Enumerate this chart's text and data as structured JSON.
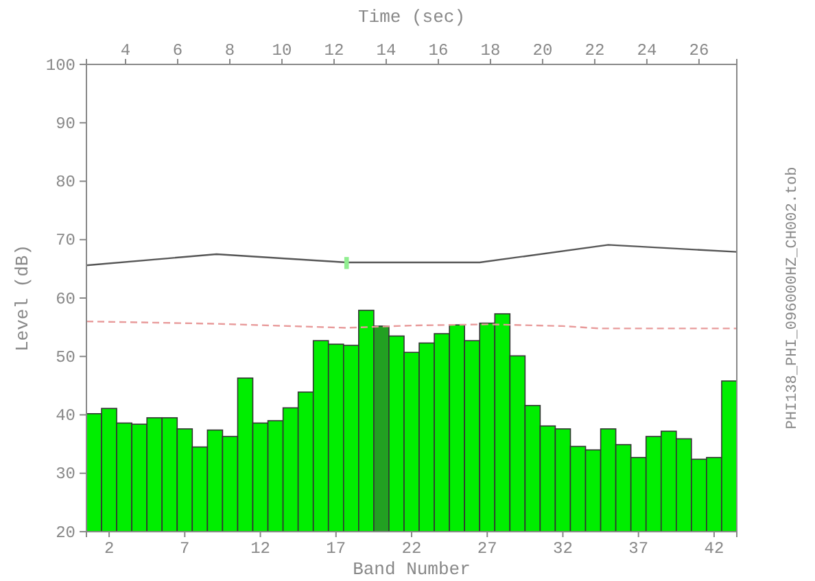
{
  "chart_data": {
    "type": "bar",
    "xlabel": "Band Number",
    "ylabel": "Level (dB)",
    "x2label": "Time (sec)",
    "x": [
      1,
      2,
      3,
      4,
      5,
      6,
      7,
      8,
      9,
      10,
      11,
      12,
      13,
      14,
      15,
      16,
      17,
      18,
      19,
      20,
      21,
      22,
      23,
      24,
      25,
      26,
      27,
      28,
      29,
      30,
      31,
      32,
      33,
      34,
      35,
      36,
      37,
      38,
      39,
      40,
      41,
      42,
      43
    ],
    "xlim": [
      0.5,
      43.5
    ],
    "xticks": [
      2,
      7,
      12,
      17,
      22,
      27,
      32,
      37,
      42
    ],
    "x2lim": [
      2.5,
      27.45
    ],
    "x2ticks": [
      4,
      6,
      8,
      10,
      12,
      14,
      16,
      18,
      20,
      22,
      24,
      26
    ],
    "ylim": [
      20,
      100
    ],
    "yticks": [
      20,
      30,
      40,
      50,
      60,
      70,
      80,
      90,
      100
    ],
    "series": [
      {
        "colors": [
          "#00ee00",
          "#00ee00",
          "#00ee00",
          "#00ee00",
          "#00ee00",
          "#00ee00",
          "#00ee00",
          "#00ee00",
          "#00ee00",
          "#00ee00",
          "#00ee00",
          "#00ee00",
          "#00ee00",
          "#00ee00",
          "#00ee00",
          "#00ee00",
          "#00ee00",
          "#00ee00",
          "#00ee00",
          "#22a022",
          "#00ee00",
          "#00ee00",
          "#00ee00",
          "#00ee00",
          "#00ee00",
          "#00ee00",
          "#00ee00",
          "#00ee00",
          "#00ee00",
          "#00ee00",
          "#00ee00",
          "#00ee00",
          "#00ee00",
          "#00ee00",
          "#00ee00",
          "#00ee00",
          "#00ee00",
          "#00ee00",
          "#00ee00",
          "#00ee00",
          "#00ee00",
          "#00ee00",
          "#00ee00"
        ],
        "values": [
          40.2,
          41.1,
          38.6,
          38.4,
          39.5,
          39.5,
          37.6,
          34.5,
          37.4,
          36.3,
          46.3,
          38.6,
          39.0,
          41.2,
          43.9,
          52.7,
          52.1,
          51.9,
          57.9,
          55.2,
          53.5,
          50.7,
          52.3,
          53.9,
          55.4,
          52.7,
          55.7,
          57.3,
          50.1,
          41.6,
          38.1,
          37.6,
          34.6,
          34.0,
          37.6,
          34.9,
          32.7,
          36.3,
          37.2,
          35.9,
          32.4,
          32.7,
          45.8
        ]
      },
      {
        "type": "line",
        "color": "#555555",
        "line_style": "solid",
        "x": [
          0.5,
          9.1,
          17.7,
          26.5,
          35.0,
          43.5
        ],
        "values": [
          65.6,
          67.5,
          66.1,
          66.1,
          69.1,
          67.9
        ]
      },
      {
        "type": "line",
        "color": "#e89a9a",
        "line_style": "dashed",
        "x": [
          0.5,
          9,
          17.7,
          22,
          27,
          32,
          34.4,
          43.5
        ],
        "values": [
          56.0,
          55.6,
          54.9,
          55.3,
          55.5,
          55.2,
          54.8,
          54.8
        ]
      },
      {
        "type": "scatter",
        "color": "#90ee90",
        "marker": "square",
        "x": [
          17.7
        ],
        "values": [
          66.0
        ]
      }
    ],
    "annotations": [
      "PHI138_PHI_096000HZ_CH002.tob"
    ],
    "grid": false
  }
}
